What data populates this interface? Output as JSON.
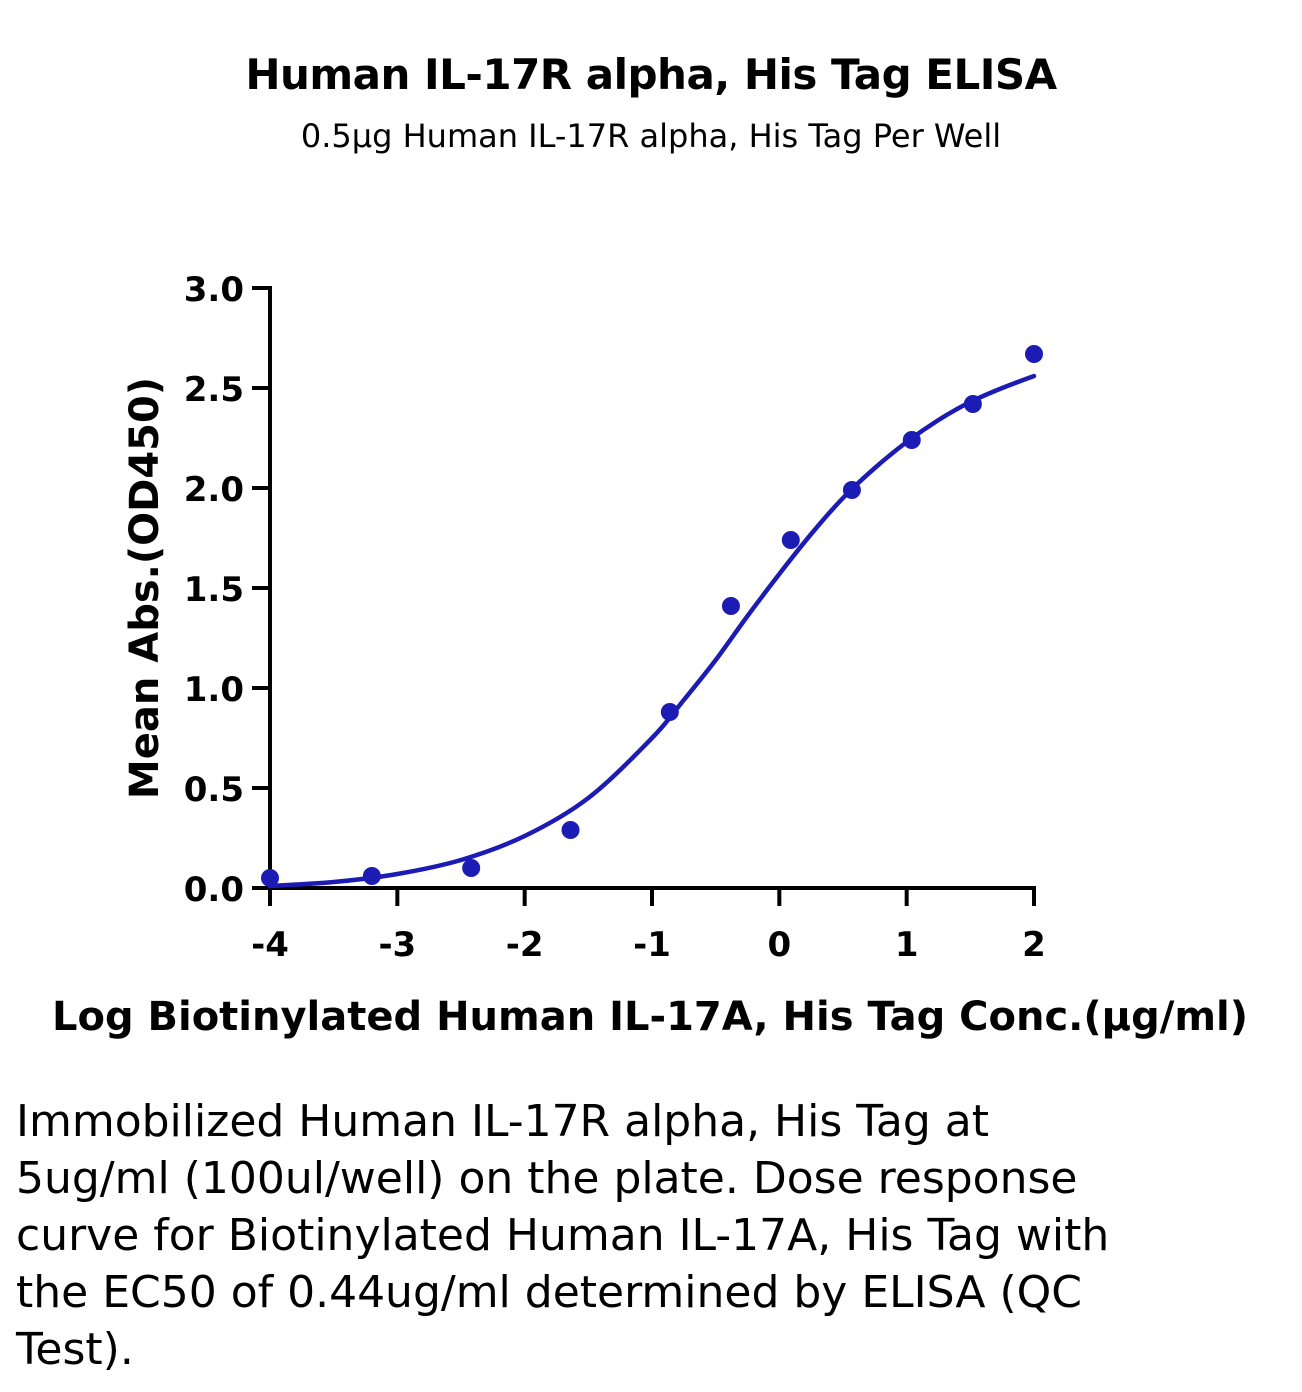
{
  "chart_data": {
    "type": "scatter",
    "title": "Human IL-17R alpha, His Tag ELISA",
    "subtitle": "0.5µg Human IL-17R alpha, His Tag Per Well",
    "xlabel": "Log Biotinylated Human IL-17A, His  Tag Conc.(µg/ml)",
    "ylabel": "Mean Abs.(OD450)",
    "xlim": [
      -4,
      2
    ],
    "ylim": [
      0,
      3.0
    ],
    "x_ticks": [
      "-4",
      "-3",
      "-2",
      "-1",
      "0",
      "1",
      "2"
    ],
    "y_ticks": [
      "0.0",
      "0.5",
      "1.0",
      "1.5",
      "2.0",
      "2.5",
      "3.0"
    ],
    "grid": false,
    "color": "#1c1cb4",
    "series": [
      {
        "points": [
          {
            "x": -4.0,
            "y": 0.05
          },
          {
            "x": -3.2,
            "y": 0.06
          },
          {
            "x": -2.42,
            "y": 0.1
          },
          {
            "x": -1.64,
            "y": 0.29
          },
          {
            "x": -0.86,
            "y": 0.88
          },
          {
            "x": -0.38,
            "y": 1.41
          },
          {
            "x": 0.09,
            "y": 1.74
          },
          {
            "x": 0.57,
            "y": 1.99
          },
          {
            "x": 1.04,
            "y": 2.24
          },
          {
            "x": 1.52,
            "y": 2.42
          },
          {
            "x": 2.0,
            "y": 2.67
          }
        ],
        "fit": {
          "model": "4PL",
          "x": [
            -4.0,
            -3.5,
            -3.0,
            -2.5,
            -2.0,
            -1.5,
            -1.0,
            -0.75,
            -0.5,
            -0.25,
            0.0,
            0.25,
            0.5,
            0.75,
            1.0,
            1.25,
            1.5,
            1.75,
            2.0
          ],
          "y": [
            0.01,
            0.03,
            0.07,
            0.14,
            0.26,
            0.45,
            0.75,
            0.94,
            1.14,
            1.36,
            1.57,
            1.77,
            1.95,
            2.1,
            2.23,
            2.34,
            2.43,
            2.5,
            2.56
          ]
        }
      }
    ]
  },
  "caption": "Immobilized Human IL-17R alpha, His Tag at 5ug/ml (100ul/well) on the plate. Dose response curve for Biotinylated Human IL-17A, His Tag with the EC50 of 0.44ug/ml determined by ELISA (QC Test)."
}
